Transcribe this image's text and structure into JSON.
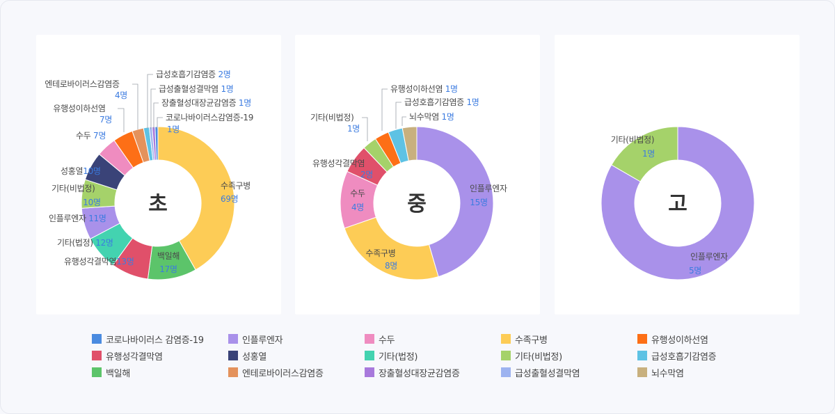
{
  "unit": "명",
  "chart_data": [
    {
      "type": "donut",
      "center_label": "초",
      "slices": [
        {
          "name": "수족구병",
          "value": 69,
          "color": "#fdcc56"
        },
        {
          "name": "백일해",
          "value": 17,
          "color": "#5cc46a"
        },
        {
          "name": "유행성각결막염",
          "value": 13,
          "color": "#e0506a"
        },
        {
          "name": "기타(법정)",
          "value": 12,
          "color": "#43d3b0"
        },
        {
          "name": "인플루엔자",
          "value": 11,
          "color": "#a991ea"
        },
        {
          "name": "기타(비법정)",
          "value": 10,
          "color": "#a5d26a"
        },
        {
          "name": "성홍열",
          "value": 10,
          "color": "#3a4378"
        },
        {
          "name": "수두",
          "value": 7,
          "color": "#ef8cc0"
        },
        {
          "name": "유행성이하선염",
          "value": 7,
          "color": "#fd6f16"
        },
        {
          "name": "엔테로바이러스감염증",
          "value": 4,
          "color": "#e4925c"
        },
        {
          "name": "급성호흡기감염증",
          "value": 2,
          "color": "#5ec2e4"
        },
        {
          "name": "급성출혈성결막염",
          "value": 1,
          "color": "#9db3f0"
        },
        {
          "name": "장출혈성대장균감염증",
          "value": 1,
          "color": "#a879dc"
        },
        {
          "name": "코로나바이러스감염증-19",
          "value": 1,
          "color": "#4a8be0"
        }
      ]
    },
    {
      "type": "donut",
      "center_label": "중",
      "slices": [
        {
          "name": "인플루엔자",
          "value": 15,
          "color": "#a991ea"
        },
        {
          "name": "수족구병",
          "value": 8,
          "color": "#fdcc56"
        },
        {
          "name": "수두",
          "value": 4,
          "color": "#ef8cc0"
        },
        {
          "name": "유행성각결막염",
          "value": 2,
          "color": "#e0506a"
        },
        {
          "name": "기타(비법정)",
          "value": 1,
          "color": "#a5d26a"
        },
        {
          "name": "유행성이하선염",
          "value": 1,
          "color": "#fd6f16"
        },
        {
          "name": "급성호흡기감염증",
          "value": 1,
          "color": "#5ec2e4"
        },
        {
          "name": "뇌수막염",
          "value": 1,
          "color": "#c8b07e"
        }
      ]
    },
    {
      "type": "donut",
      "center_label": "고",
      "slices": [
        {
          "name": "인플루엔자",
          "value": 5,
          "color": "#a991ea"
        },
        {
          "name": "기타(비법정)",
          "value": 1,
          "color": "#a5d26a"
        }
      ]
    }
  ],
  "legend": [
    {
      "label": "코로나바이러스 감염증-19",
      "color": "#4a8be0"
    },
    {
      "label": "인플루엔자",
      "color": "#a991ea"
    },
    {
      "label": "수두",
      "color": "#ef8cc0"
    },
    {
      "label": "수족구병",
      "color": "#fdcc56"
    },
    {
      "label": "유행성이하선염",
      "color": "#fd6f16"
    },
    {
      "label": "유행성각결막염",
      "color": "#e0506a"
    },
    {
      "label": "성홍열",
      "color": "#3a4378"
    },
    {
      "label": "기타(법정)",
      "color": "#43d3b0"
    },
    {
      "label": "기타(비법정)",
      "color": "#a5d26a"
    },
    {
      "label": "급성호흡기감염증",
      "color": "#5ec2e4"
    },
    {
      "label": "백일해",
      "color": "#5cc46a"
    },
    {
      "label": "엔테로바이러스감염증",
      "color": "#e4925c"
    },
    {
      "label": "장출혈성대장균감염증",
      "color": "#a879dc"
    },
    {
      "label": "급성출혈성결막염",
      "color": "#9db3f0"
    },
    {
      "label": "뇌수막염",
      "color": "#c8b07e"
    }
  ]
}
